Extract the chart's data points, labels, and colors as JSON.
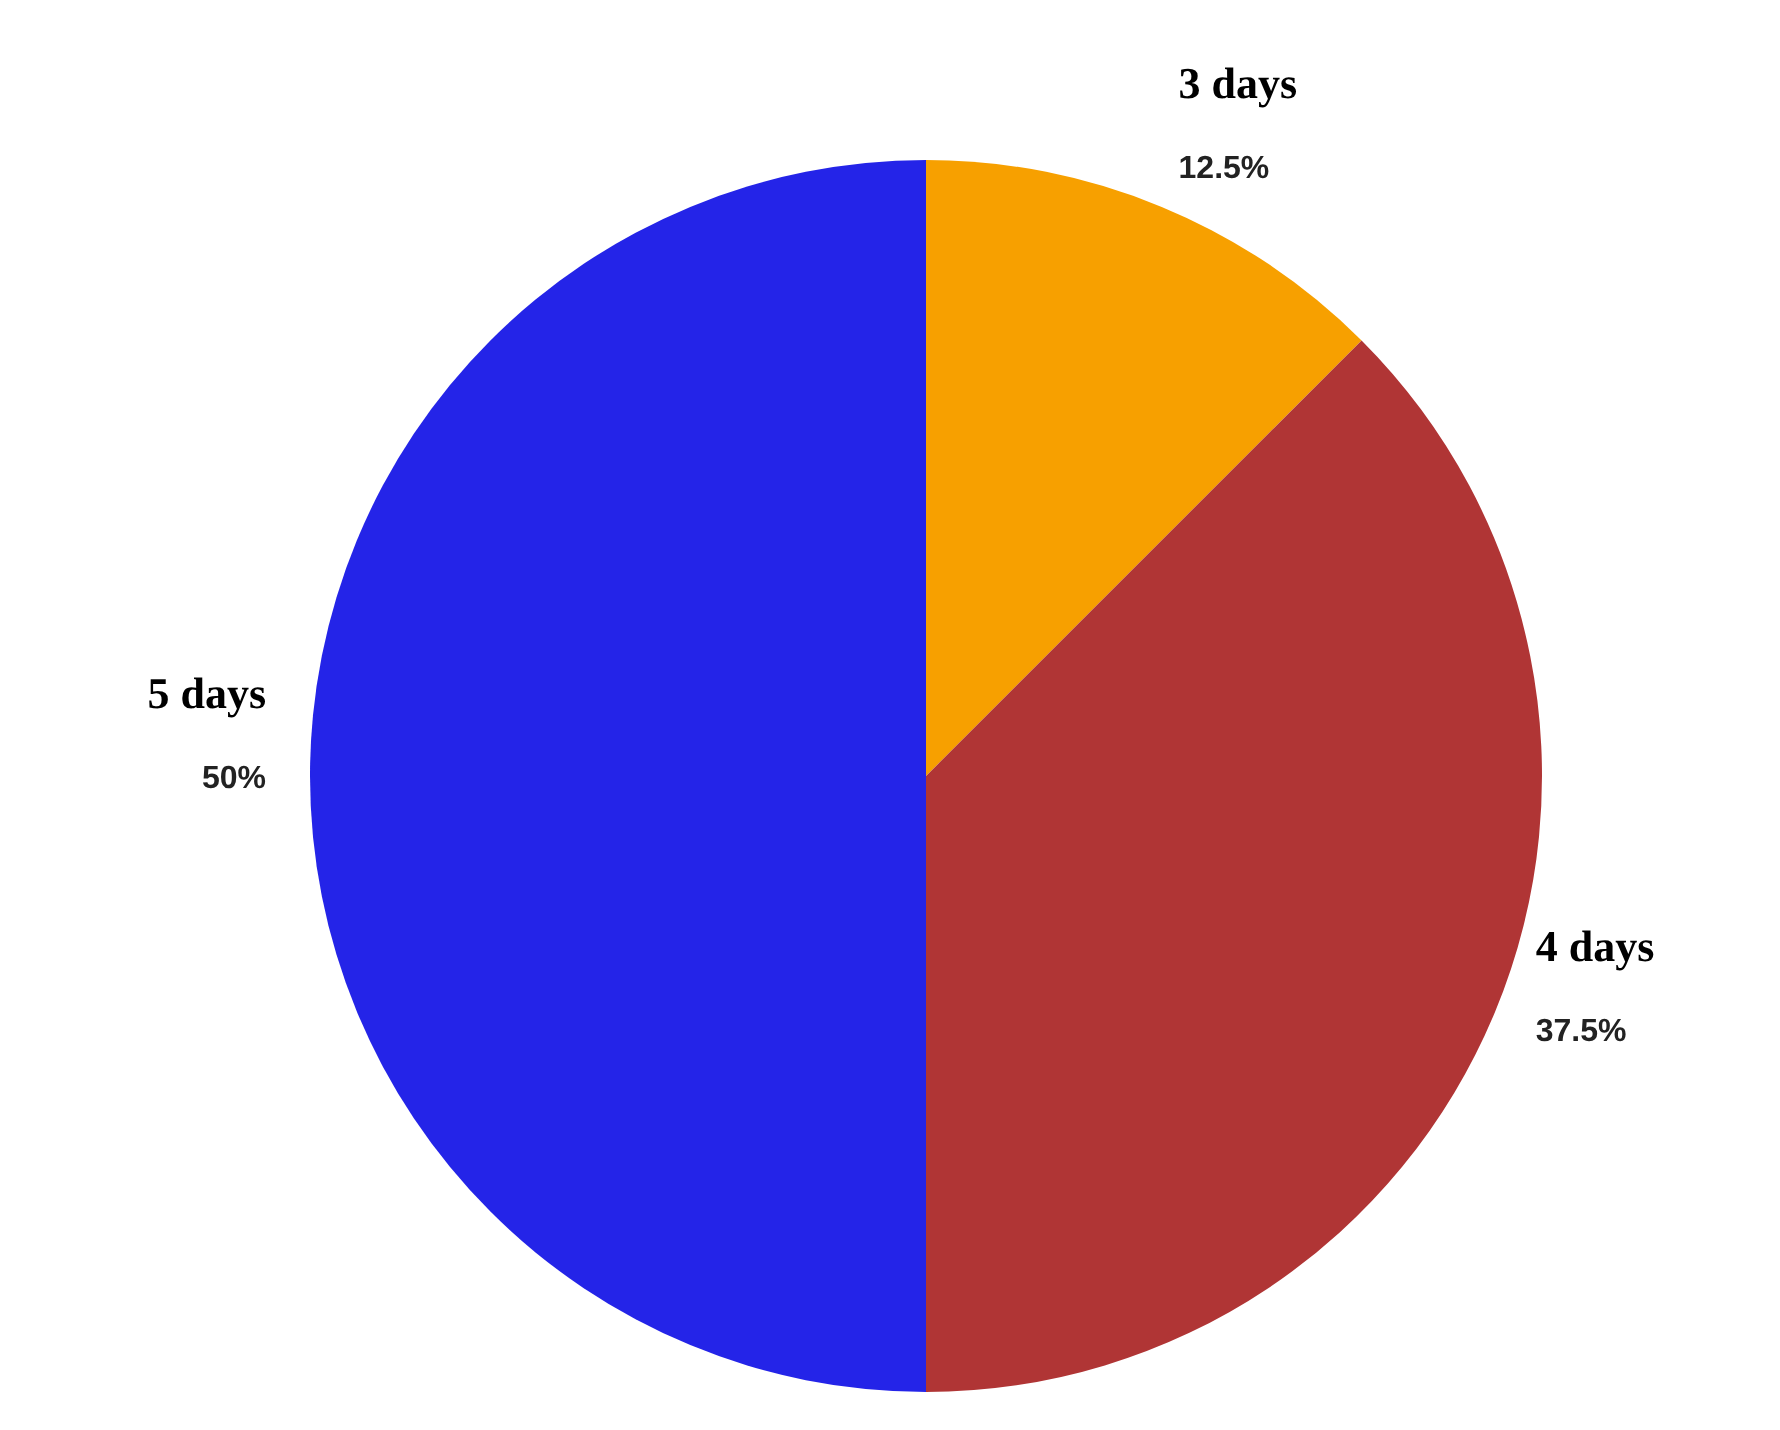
{
  "chart_data": {
    "type": "pie",
    "categories": [
      "3 days",
      "4 days",
      "5 days"
    ],
    "values": [
      12.5,
      37.5,
      50
    ],
    "colors": [
      "#f7a000",
      "#b03535",
      "#2424e8"
    ],
    "value_labels": [
      "12.5%",
      "37.5%",
      "50%"
    ]
  }
}
